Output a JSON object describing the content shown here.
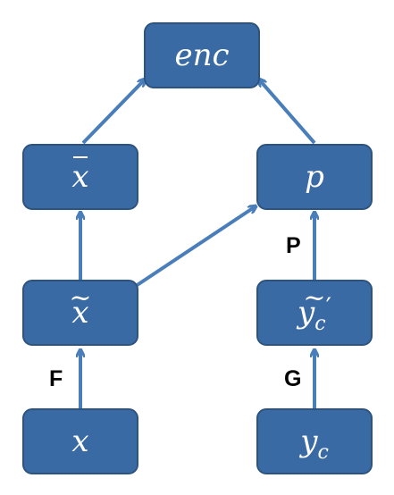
{
  "nodes": {
    "enc": {
      "label": "enc"
    },
    "xbar": {
      "label": "x"
    },
    "p": {
      "label": "p"
    },
    "xtilde": {
      "label": "x"
    },
    "yctilde": {
      "label": "y",
      "sub": "c",
      "prime": "′"
    },
    "x": {
      "label": "x"
    },
    "yc": {
      "label": "y",
      "sub": "c"
    }
  },
  "edge_labels": {
    "F": "F",
    "G": "G",
    "P": "P"
  },
  "colors": {
    "node_fill": "#3a6aa3",
    "node_border": "#2d5480",
    "arrow": "#4a7ebb",
    "text": "#ffffff"
  }
}
